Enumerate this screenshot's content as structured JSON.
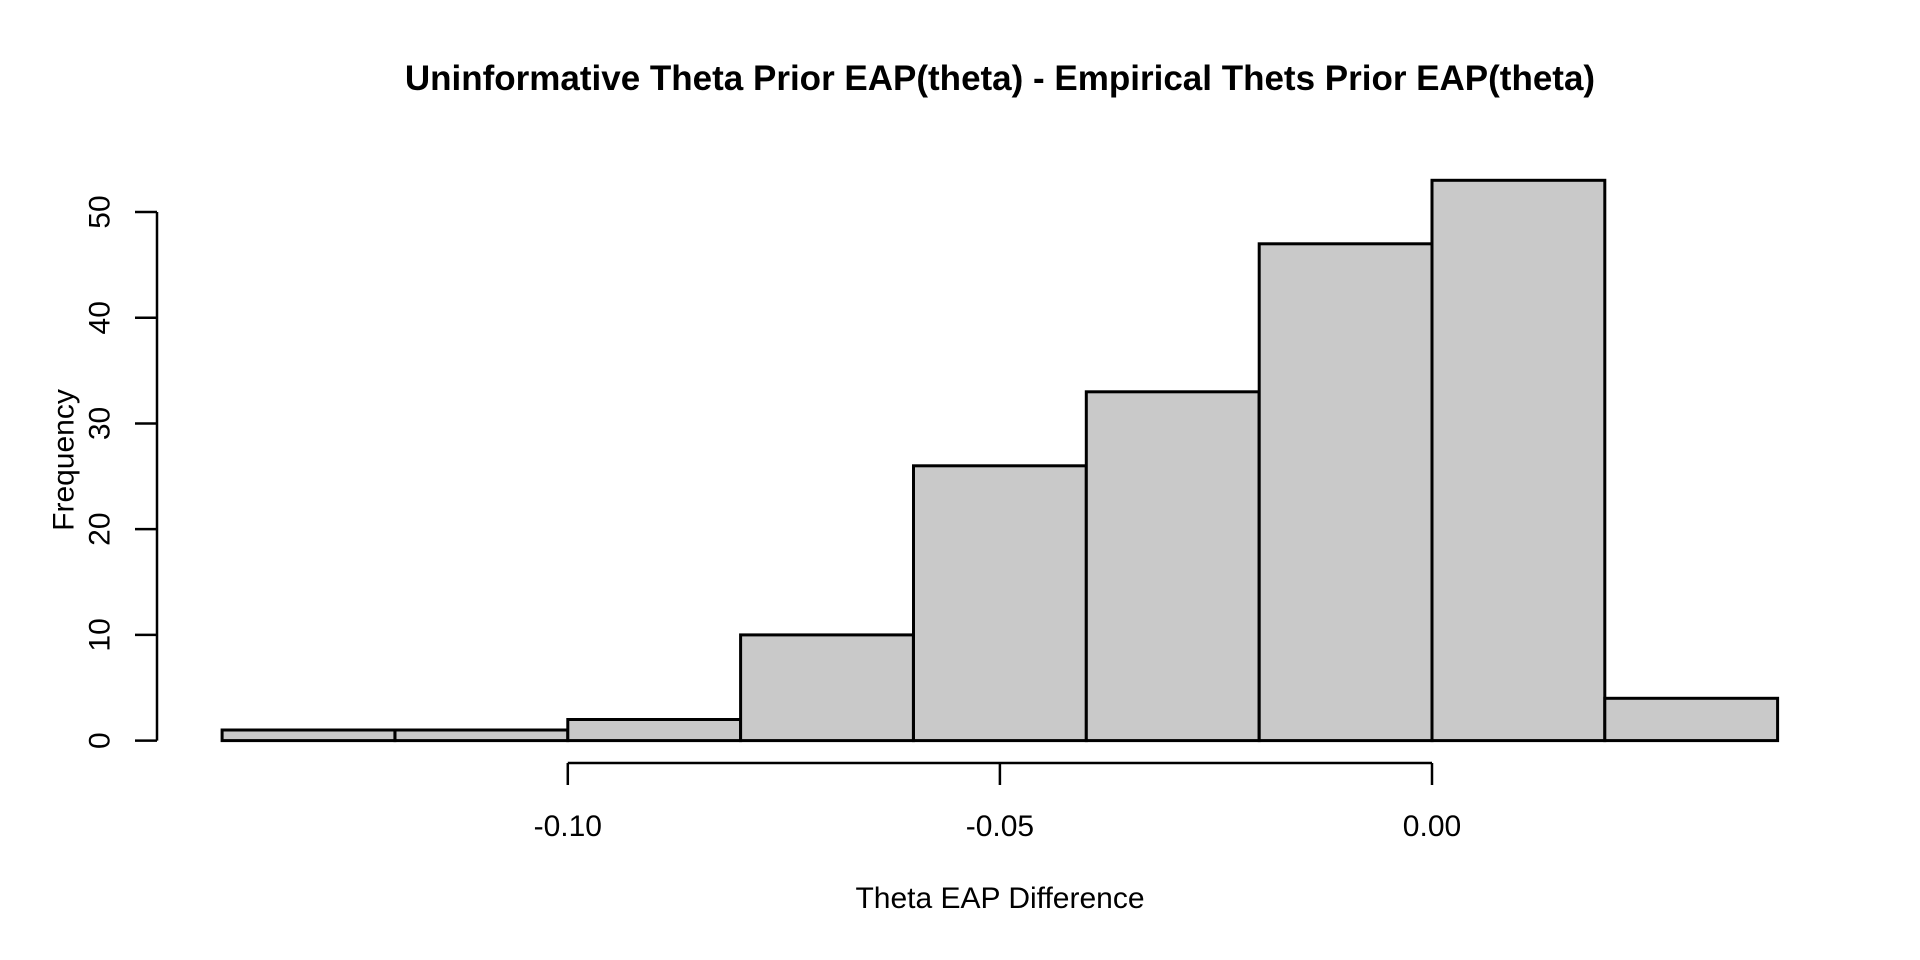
{
  "chart_data": {
    "type": "bar",
    "subtype": "histogram",
    "title": "Uninformative Theta Prior EAP(theta) - Empirical Thets Prior EAP(theta)",
    "xlabel": "Theta EAP Difference",
    "ylabel": "Frequency",
    "bin_edges": [
      -0.14,
      -0.12,
      -0.1,
      -0.08,
      -0.06,
      -0.04,
      -0.02,
      0.0,
      0.02,
      0.04
    ],
    "counts": [
      1,
      1,
      2,
      10,
      26,
      33,
      47,
      53,
      4
    ],
    "x_ticks": [
      {
        "value": -0.1,
        "label": "-0.10"
      },
      {
        "value": -0.05,
        "label": "-0.05"
      },
      {
        "value": 0.0,
        "label": "0.00"
      }
    ],
    "y_ticks": [
      {
        "value": 0,
        "label": "0"
      },
      {
        "value": 10,
        "label": "10"
      },
      {
        "value": 20,
        "label": "20"
      },
      {
        "value": 30,
        "label": "30"
      },
      {
        "value": 40,
        "label": "40"
      },
      {
        "value": 50,
        "label": "50"
      }
    ],
    "xlim": [
      -0.147,
      0.047
    ],
    "ylim": [
      0,
      53
    ],
    "grid": false,
    "legend": null,
    "colors": {
      "bar_fill": "#C9C9C9",
      "bar_border": "#000000",
      "axis": "#000000",
      "text": "#000000",
      "background": "#FFFFFF"
    }
  }
}
